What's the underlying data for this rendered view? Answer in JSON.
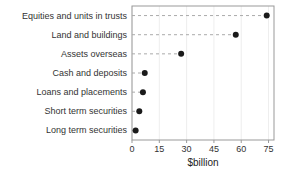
{
  "chart_data": {
    "type": "lollipop",
    "orientation": "horizontal",
    "categories": [
      "Equities and units in trusts",
      "Land and buildings",
      "Assets overseas",
      "Cash and deposits",
      "Loans and placements",
      "Short term securities",
      "Long term securities"
    ],
    "values": [
      74,
      57,
      27,
      7,
      6,
      4,
      2
    ],
    "xlabel": "$billion",
    "xlim": [
      0,
      78
    ],
    "xticks": [
      0,
      15,
      30,
      45,
      60,
      75
    ],
    "color": "#1a1a1a",
    "marker": "circle",
    "line_style": "dashed"
  }
}
